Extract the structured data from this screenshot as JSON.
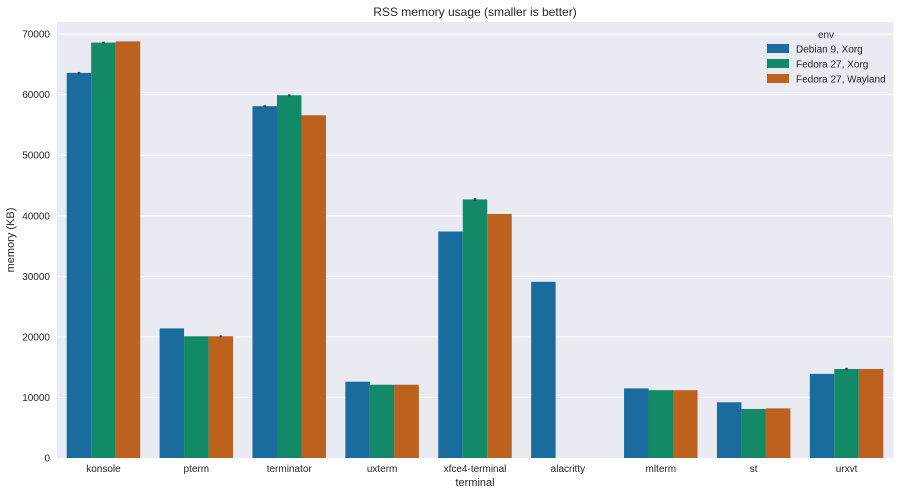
{
  "chart_data": {
    "type": "bar",
    "title": "RSS memory usage (smaller is better)",
    "xlabel": "terminal",
    "ylabel": "memory (KB)",
    "ylim": [
      0,
      72000
    ],
    "yticks": [
      0,
      10000,
      20000,
      30000,
      40000,
      50000,
      60000,
      70000
    ],
    "grid": true,
    "legend_title": "env",
    "legend_position": "top-right",
    "categories": [
      "konsole",
      "pterm",
      "terminator",
      "uxterm",
      "xfce4-terminal",
      "alacritty",
      "mlterm",
      "st",
      "urxvt"
    ],
    "series": [
      {
        "name": "Debian 9, Xorg",
        "color": "#1a6c9e",
        "values": [
          63600,
          21400,
          58100,
          12600,
          37400,
          29100,
          11500,
          9200,
          13900
        ],
        "error": [
          150,
          0,
          150,
          0,
          0,
          0,
          0,
          0,
          0
        ]
      },
      {
        "name": "Fedora 27, Xorg",
        "color": "#128a67",
        "values": [
          68600,
          20100,
          59900,
          12100,
          42700,
          null,
          11200,
          8100,
          14700
        ],
        "error": [
          150,
          0,
          150,
          0,
          200,
          0,
          0,
          0,
          200
        ]
      },
      {
        "name": "Fedora 27, Wayland",
        "color": "#bd611f",
        "values": [
          68800,
          20100,
          56600,
          12100,
          40300,
          null,
          11200,
          8200,
          14700
        ],
        "error": [
          0,
          150,
          0,
          0,
          0,
          0,
          0,
          0,
          0
        ]
      }
    ]
  }
}
